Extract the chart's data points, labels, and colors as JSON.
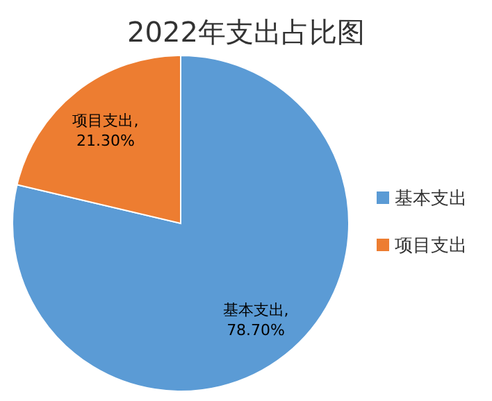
{
  "chart_data": {
    "type": "pie",
    "title": "2022年支出占比图",
    "categories": [
      "基本支出",
      "项目支出"
    ],
    "values": [
      78.7,
      21.3
    ],
    "colors": [
      "#5b9bd5",
      "#ed7d31"
    ],
    "value_labels": [
      "基本支出,\n78.70%",
      "项目支出,\n21.30%"
    ],
    "legend": "right"
  }
}
